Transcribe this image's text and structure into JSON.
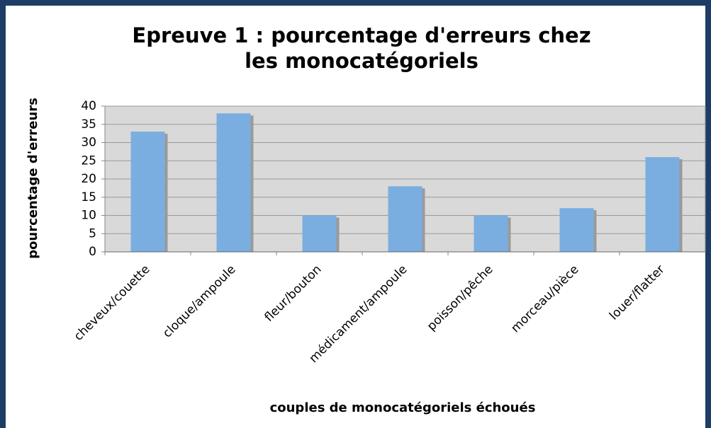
{
  "chart_data": {
    "type": "bar",
    "title": "Epreuve 1 : pourcentage d'erreurs chez les monocatégoriels",
    "x_label": "couples de monocatégoriels échoués",
    "y_label": "pourcentage d'erreurs",
    "categories": [
      "cheveux/couette",
      "cloque/ampoule",
      "fleur/bouton",
      "médicament/ampoule",
      "poisson/pêche",
      "morceau/pièce",
      "louer/flatter"
    ],
    "values": [
      33,
      38,
      10,
      18,
      10,
      12,
      26
    ],
    "color": "#7aaee0",
    "ylim": [
      0,
      40
    ],
    "yticks": [
      0,
      5,
      10,
      15,
      20,
      25,
      30,
      35,
      40
    ],
    "grid": true
  }
}
